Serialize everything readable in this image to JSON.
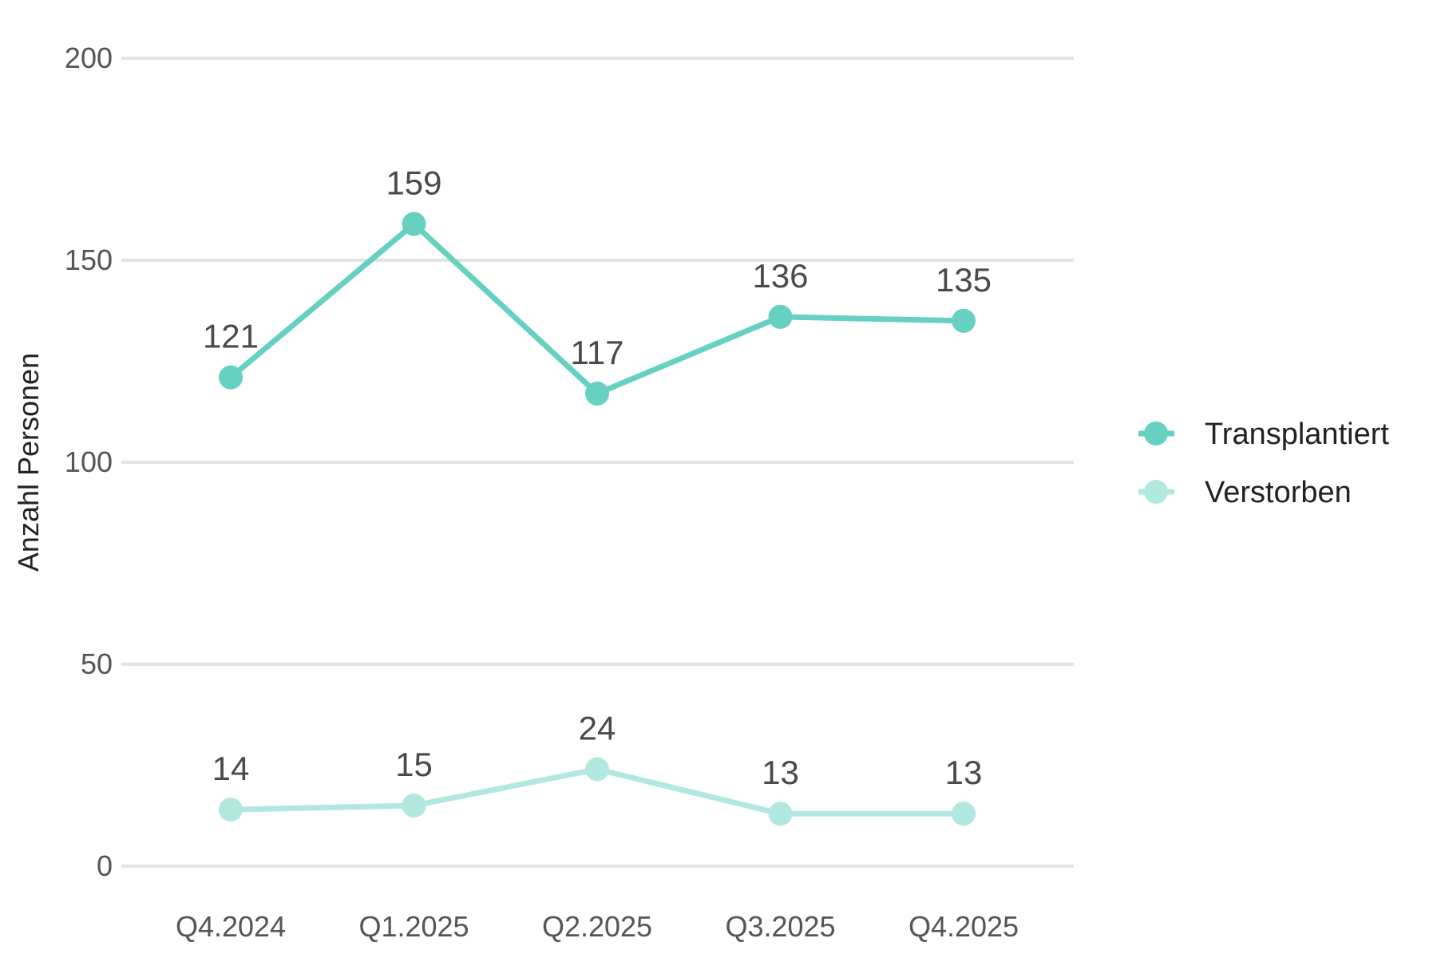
{
  "chart_data": {
    "type": "line",
    "title": "",
    "xlabel": "",
    "ylabel": "Anzahl Personen",
    "ylim": [
      0,
      200
    ],
    "yticks": [
      0,
      50,
      100,
      150,
      200
    ],
    "grid": "horizontal",
    "legend_position": "right",
    "categories": [
      "Q4.2024",
      "Q1.2025",
      "Q2.2025",
      "Q3.2025",
      "Q4.2025"
    ],
    "series": [
      {
        "name": "Transplantiert",
        "color": "#66d1c1",
        "values": [
          121,
          159,
          117,
          136,
          135
        ]
      },
      {
        "name": "Verstorben",
        "color": "#b2e8e0",
        "values": [
          14,
          15,
          24,
          13,
          13
        ]
      }
    ]
  }
}
